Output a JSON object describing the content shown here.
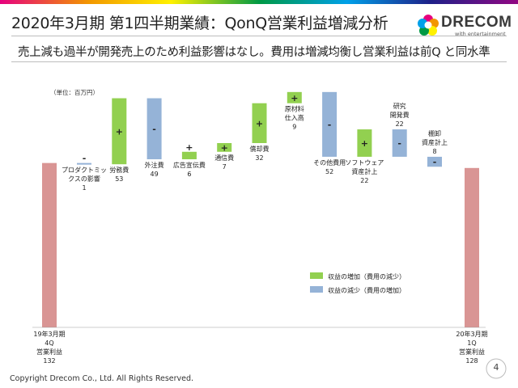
{
  "title": "2020年3月期 第1四半期業績：QonQ営業利益増減分析",
  "subtitle": "売上減も過半が開発売上のため利益影響はなし。費用は増減均衡し営業利益は前Q と同水準",
  "logo": {
    "name": "DRECOM",
    "tagline": "with entertainment"
  },
  "footer": "Copyright Drecom Co., Ltd. All Rights Reserved.",
  "page_number": "4",
  "colors": {
    "total": "#d99594",
    "increase": "#92d050",
    "decrease": "#95b3d7",
    "topbar": [
      "#e6007e",
      "#f29600",
      "#fff100",
      "#009944",
      "#00a0e9",
      "#1d2088",
      "#920783"
    ]
  },
  "chart_data": {
    "type": "waterfall",
    "unit_label": "（単位：百万円）",
    "start": {
      "label_lines": [
        "19年3月期",
        "4Q",
        "営業利益",
        "132"
      ],
      "value": 132
    },
    "end": {
      "label_lines": [
        "20年3月期",
        "1Q",
        "営業利益",
        "128"
      ],
      "value": 128
    },
    "steps": [
      {
        "label_lines": [
          "プロダクトミッ",
          "クスの影響",
          "1"
        ],
        "value": -1,
        "sign": "-"
      },
      {
        "label_lines": [
          "労務費",
          "53"
        ],
        "value": 53,
        "sign": "+"
      },
      {
        "label_lines": [
          "外注費",
          "49"
        ],
        "value": -49,
        "sign": "-"
      },
      {
        "label_lines": [
          "広告宣伝費",
          "6"
        ],
        "value": 6,
        "sign": "+"
      },
      {
        "label_lines": [
          "通信費",
          "7"
        ],
        "value": 7,
        "sign": "+"
      },
      {
        "label_lines": [
          "償却費",
          "32"
        ],
        "value": 32,
        "sign": "+"
      },
      {
        "label_lines": [
          "原材料",
          "仕入高",
          "9"
        ],
        "value": 9,
        "sign": "+"
      },
      {
        "label_lines": [
          "その他費用",
          "52"
        ],
        "value": -52,
        "sign": "-"
      },
      {
        "label_lines": [
          "ソフトウェア",
          "資産計上",
          "22"
        ],
        "value": 22,
        "sign": "+"
      },
      {
        "label_lines": [
          "研究",
          "開発費",
          "22"
        ],
        "value": -22,
        "sign": "-"
      },
      {
        "label_lines": [
          "棚卸",
          "資産計上",
          "8"
        ],
        "value": -8,
        "sign": "-"
      }
    ],
    "legend": [
      {
        "label": "収益の増加（費用の減少）",
        "kind": "increase"
      },
      {
        "label": "収益の減少（費用の増加）",
        "kind": "decrease"
      }
    ],
    "legend_position": "center-right",
    "grid": false
  }
}
